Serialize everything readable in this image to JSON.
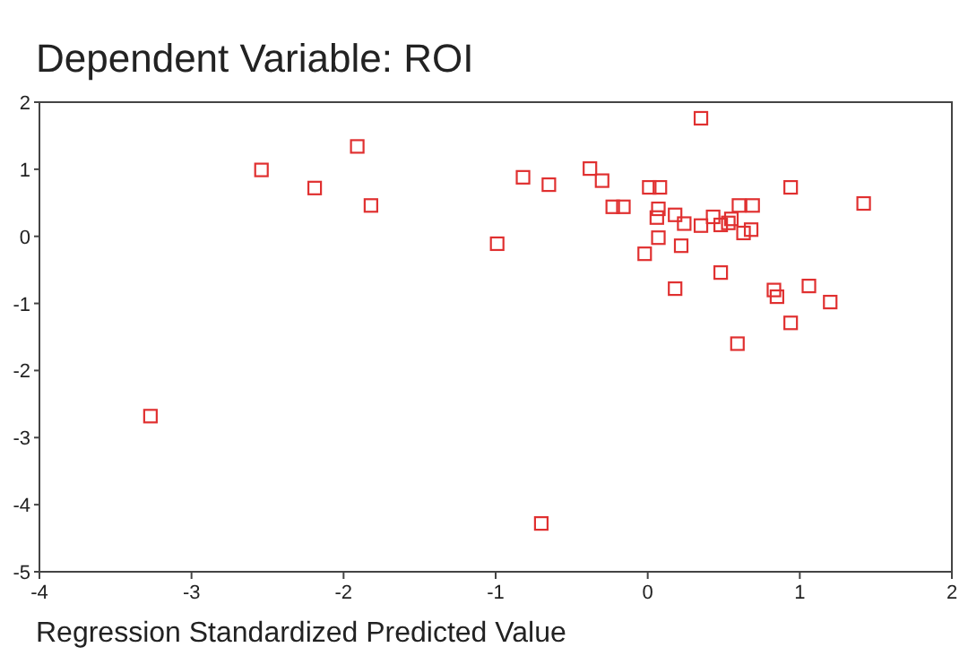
{
  "chart_data": {
    "type": "scatter",
    "title": "Dependent Variable: ROI",
    "xlabel": "Regression Standardized Predicted Value",
    "marker": "square",
    "grid": false,
    "xlim": [
      -4,
      2
    ],
    "xticks": [
      -4,
      -3,
      -2,
      -1,
      0,
      1,
      2
    ],
    "ylim": [
      -5,
      2
    ],
    "yticks": [
      -5,
      -4,
      -3,
      -2,
      -1,
      0,
      1,
      2
    ],
    "series": [
      {
        "color": "#e03030",
        "x": [
          -3.27,
          -2.54,
          -2.19,
          -1.91,
          -1.82,
          -0.99,
          0.35,
          -0.82,
          -0.65,
          -0.38,
          -0.3,
          -0.23,
          -0.16,
          0.01,
          0.08,
          0.07,
          0.06,
          0.18,
          0.24,
          0.35,
          0.43,
          0.48,
          0.53,
          0.55,
          0.6,
          0.69,
          0.63,
          0.68,
          0.94,
          1.42,
          0.07,
          0.22,
          -0.02,
          0.48,
          0.18,
          0.83,
          0.85,
          1.06,
          1.2,
          0.94,
          0.59,
          -0.7
        ],
        "values": [
          -2.68,
          0.99,
          0.72,
          1.34,
          0.46,
          -0.11,
          1.76,
          0.88,
          0.77,
          1.01,
          0.83,
          0.44,
          0.44,
          0.73,
          0.73,
          0.41,
          0.28,
          0.32,
          0.19,
          0.16,
          0.29,
          0.17,
          0.2,
          0.26,
          0.46,
          0.46,
          0.05,
          0.1,
          0.73,
          0.49,
          -0.02,
          -0.14,
          -0.26,
          -0.54,
          -0.78,
          -0.8,
          -0.9,
          -0.74,
          -0.98,
          -1.29,
          -1.6,
          -4.28
        ]
      }
    ]
  }
}
